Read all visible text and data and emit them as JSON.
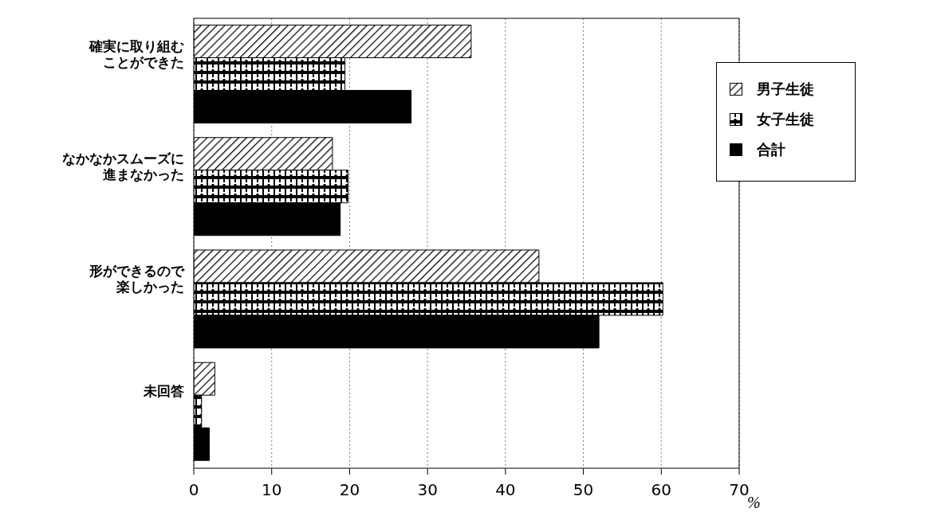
{
  "chart_data": {
    "type": "bar",
    "orientation": "horizontal",
    "categories": [
      "確実に取り組むことができた",
      "なかなかスムーズに進まなかった",
      "形ができるので楽しかった",
      "未回答"
    ],
    "series": [
      {
        "name": "男子生徒",
        "color": "#000000",
        "values": [
          35.6,
          17.8,
          44.3,
          2.7
        ]
      },
      {
        "name": "女子生徒",
        "color": "#000000",
        "values": [
          19.4,
          19.8,
          60.2,
          1.0
        ]
      },
      {
        "name": "合計",
        "color": "#000000",
        "values": [
          27.9,
          18.8,
          52.0,
          2.0
        ]
      }
    ],
    "xlabel": "%",
    "xlim": [
      0,
      70
    ],
    "xticks": [
      0,
      10,
      20,
      30,
      40,
      50,
      60,
      70
    ],
    "grid": "x",
    "legend": "top right"
  }
}
